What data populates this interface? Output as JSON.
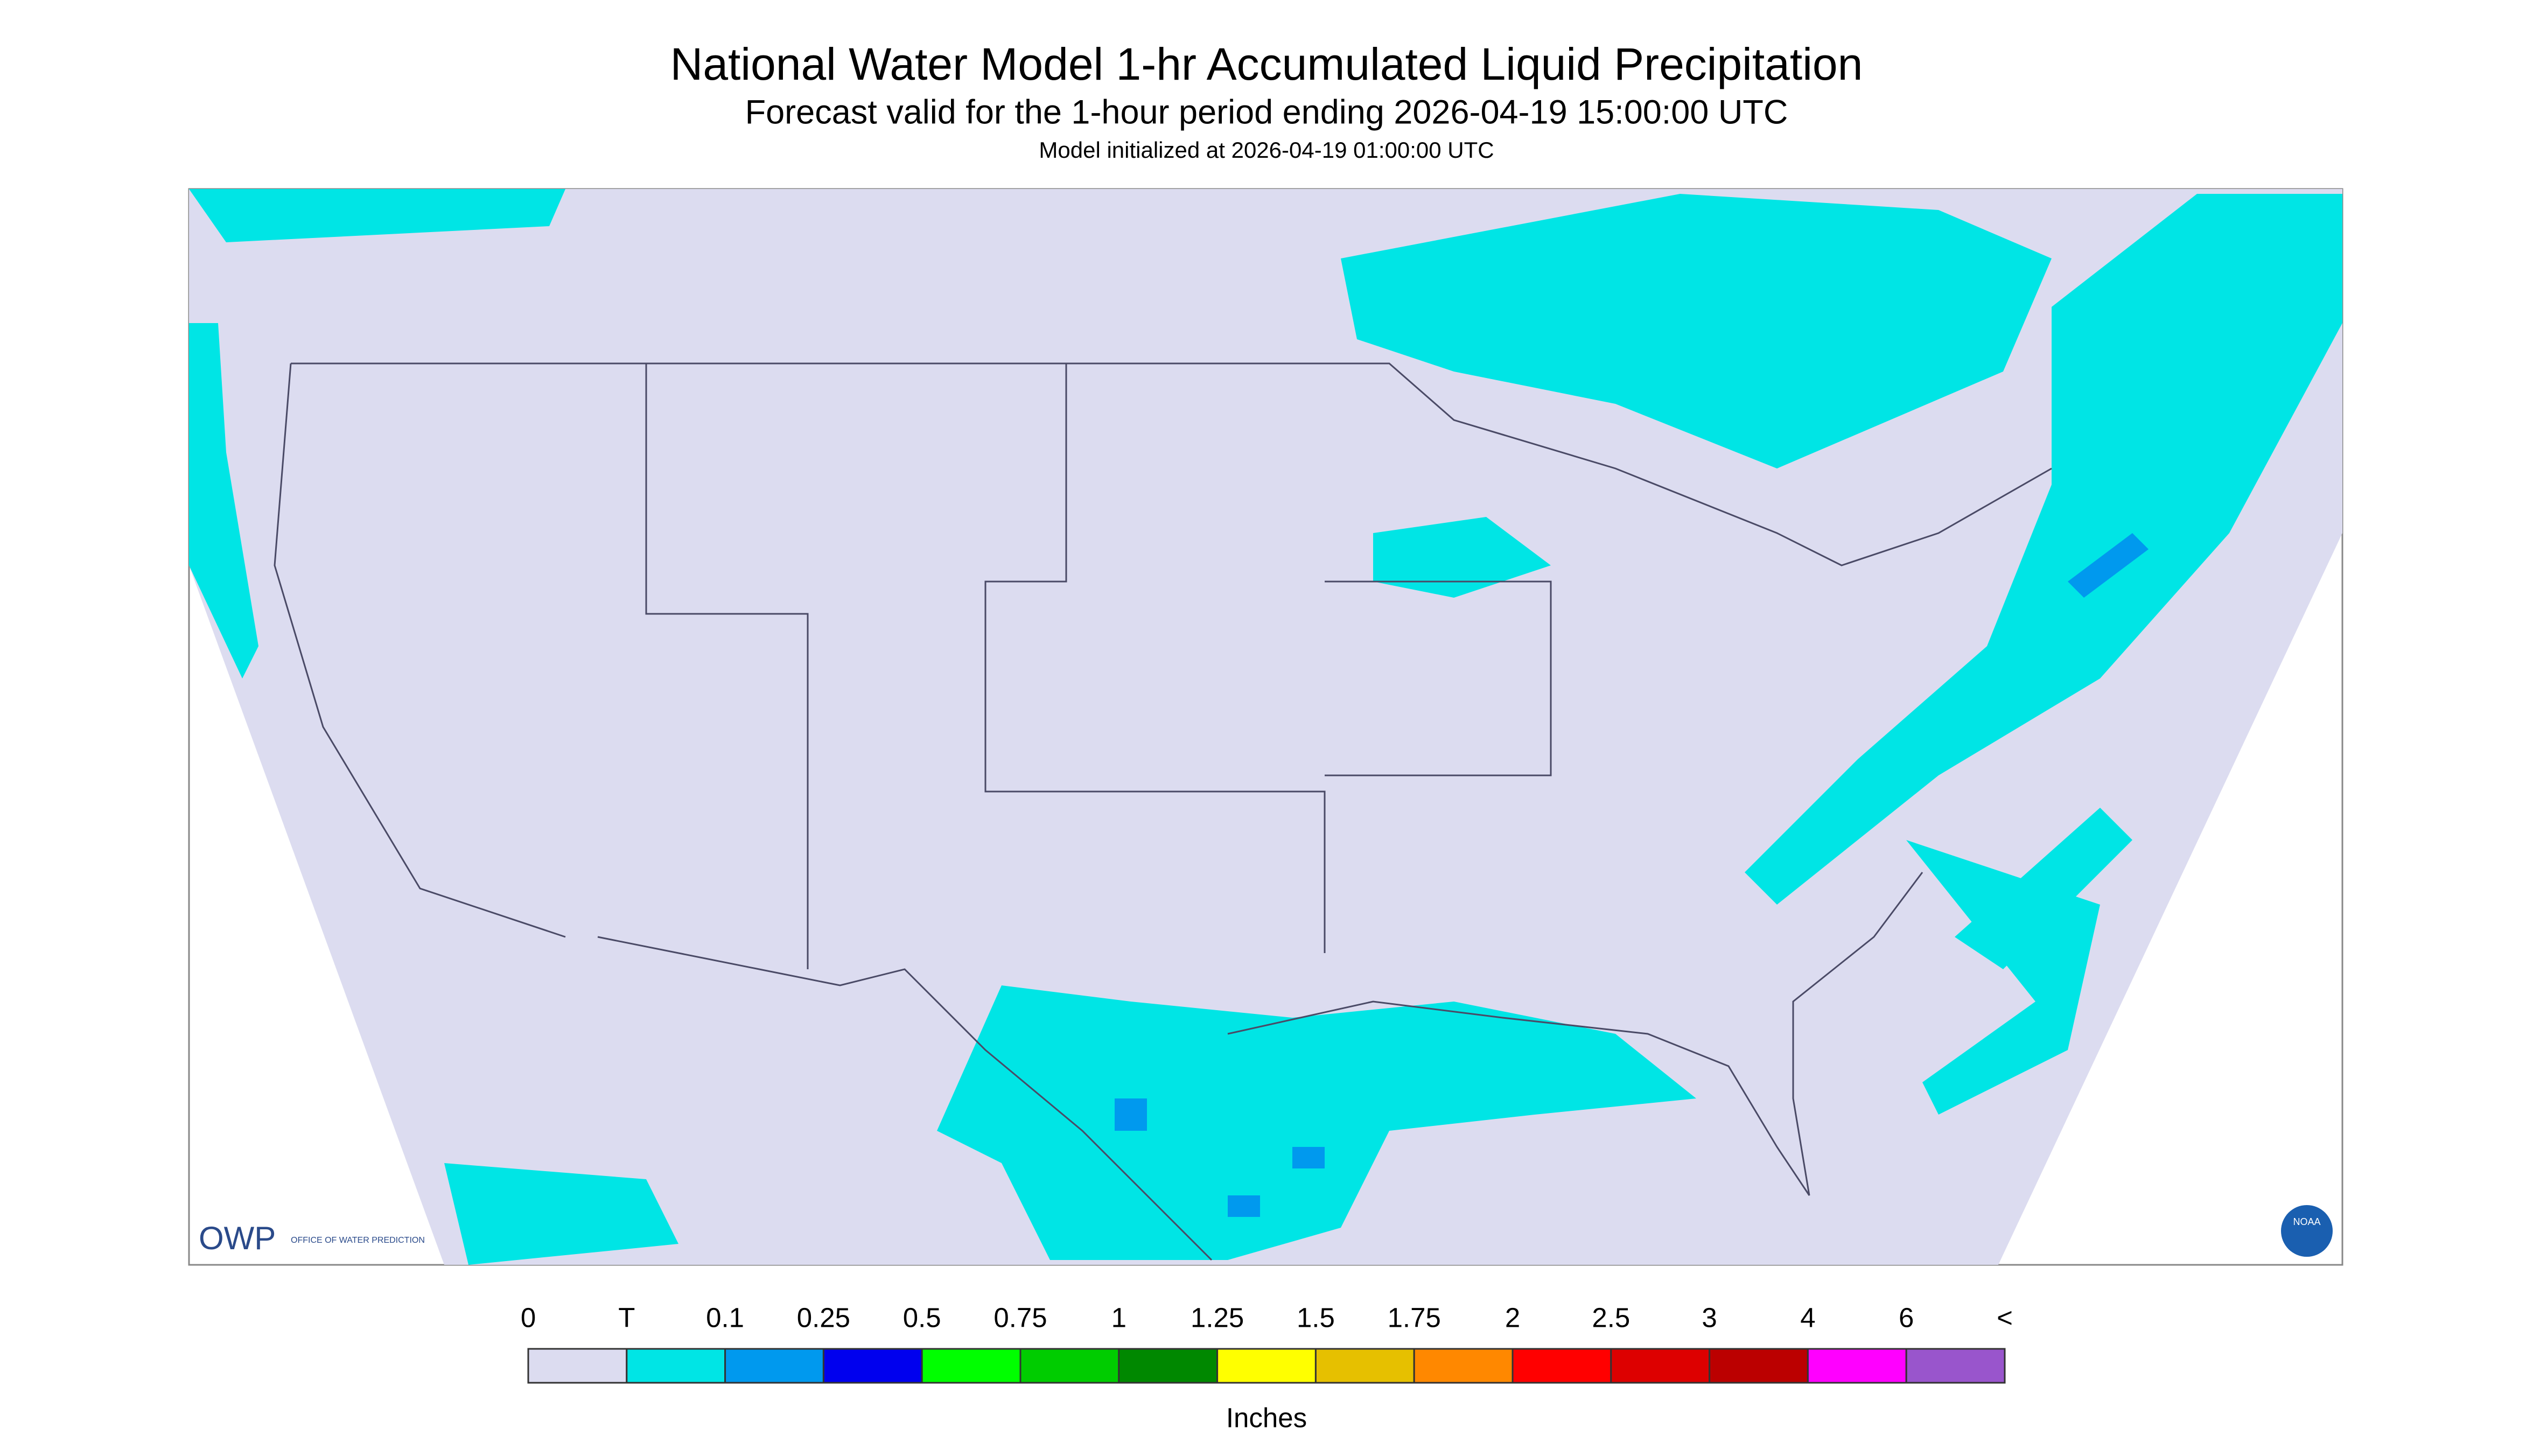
{
  "header": {
    "title": "National Water Model 1-hr Accumulated Liquid Precipitation",
    "subtitle": "Forecast valid for the 1-hour period ending 2026-04-19 15:00:00 UTC",
    "init": "Model initialized at 2026-04-19 01:00:00 UTC"
  },
  "logo": {
    "owp": "OWP",
    "owp_name": "OFFICE OF WATER PREDICTION",
    "noaa": "NOAA"
  },
  "legend": {
    "labels": [
      "0",
      "T",
      "0.1",
      "0.25",
      "0.5",
      "0.75",
      "1",
      "1.25",
      "1.5",
      "1.75",
      "2",
      "2.5",
      "3",
      "4",
      "6",
      "<"
    ],
    "colors": [
      "#dcdcf0",
      "#00e5e5",
      "#0099ee",
      "#0000ee",
      "#00ff00",
      "#00cc00",
      "#008800",
      "#ffff00",
      "#e6c000",
      "#ff8800",
      "#ff0000",
      "#dd0000",
      "#bb0000",
      "#ff00ff",
      "#9955cc"
    ],
    "units": "Inches"
  }
}
